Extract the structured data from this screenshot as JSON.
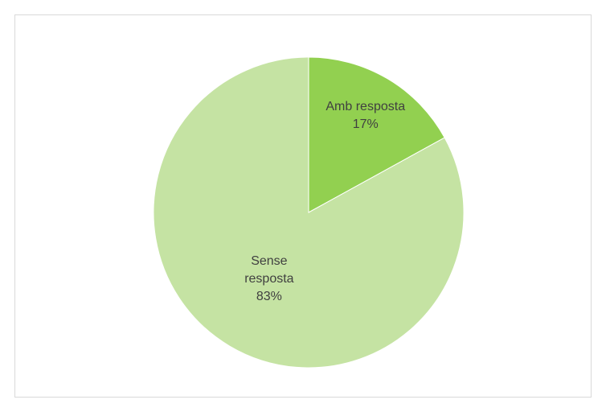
{
  "chart_data": {
    "type": "pie",
    "categories": [
      "Amb resposta",
      "Sense resposta"
    ],
    "values": [
      17,
      83
    ],
    "value_labels": [
      "17%",
      "83%"
    ],
    "colors": [
      "#92d050",
      "#c5e3a3"
    ]
  }
}
